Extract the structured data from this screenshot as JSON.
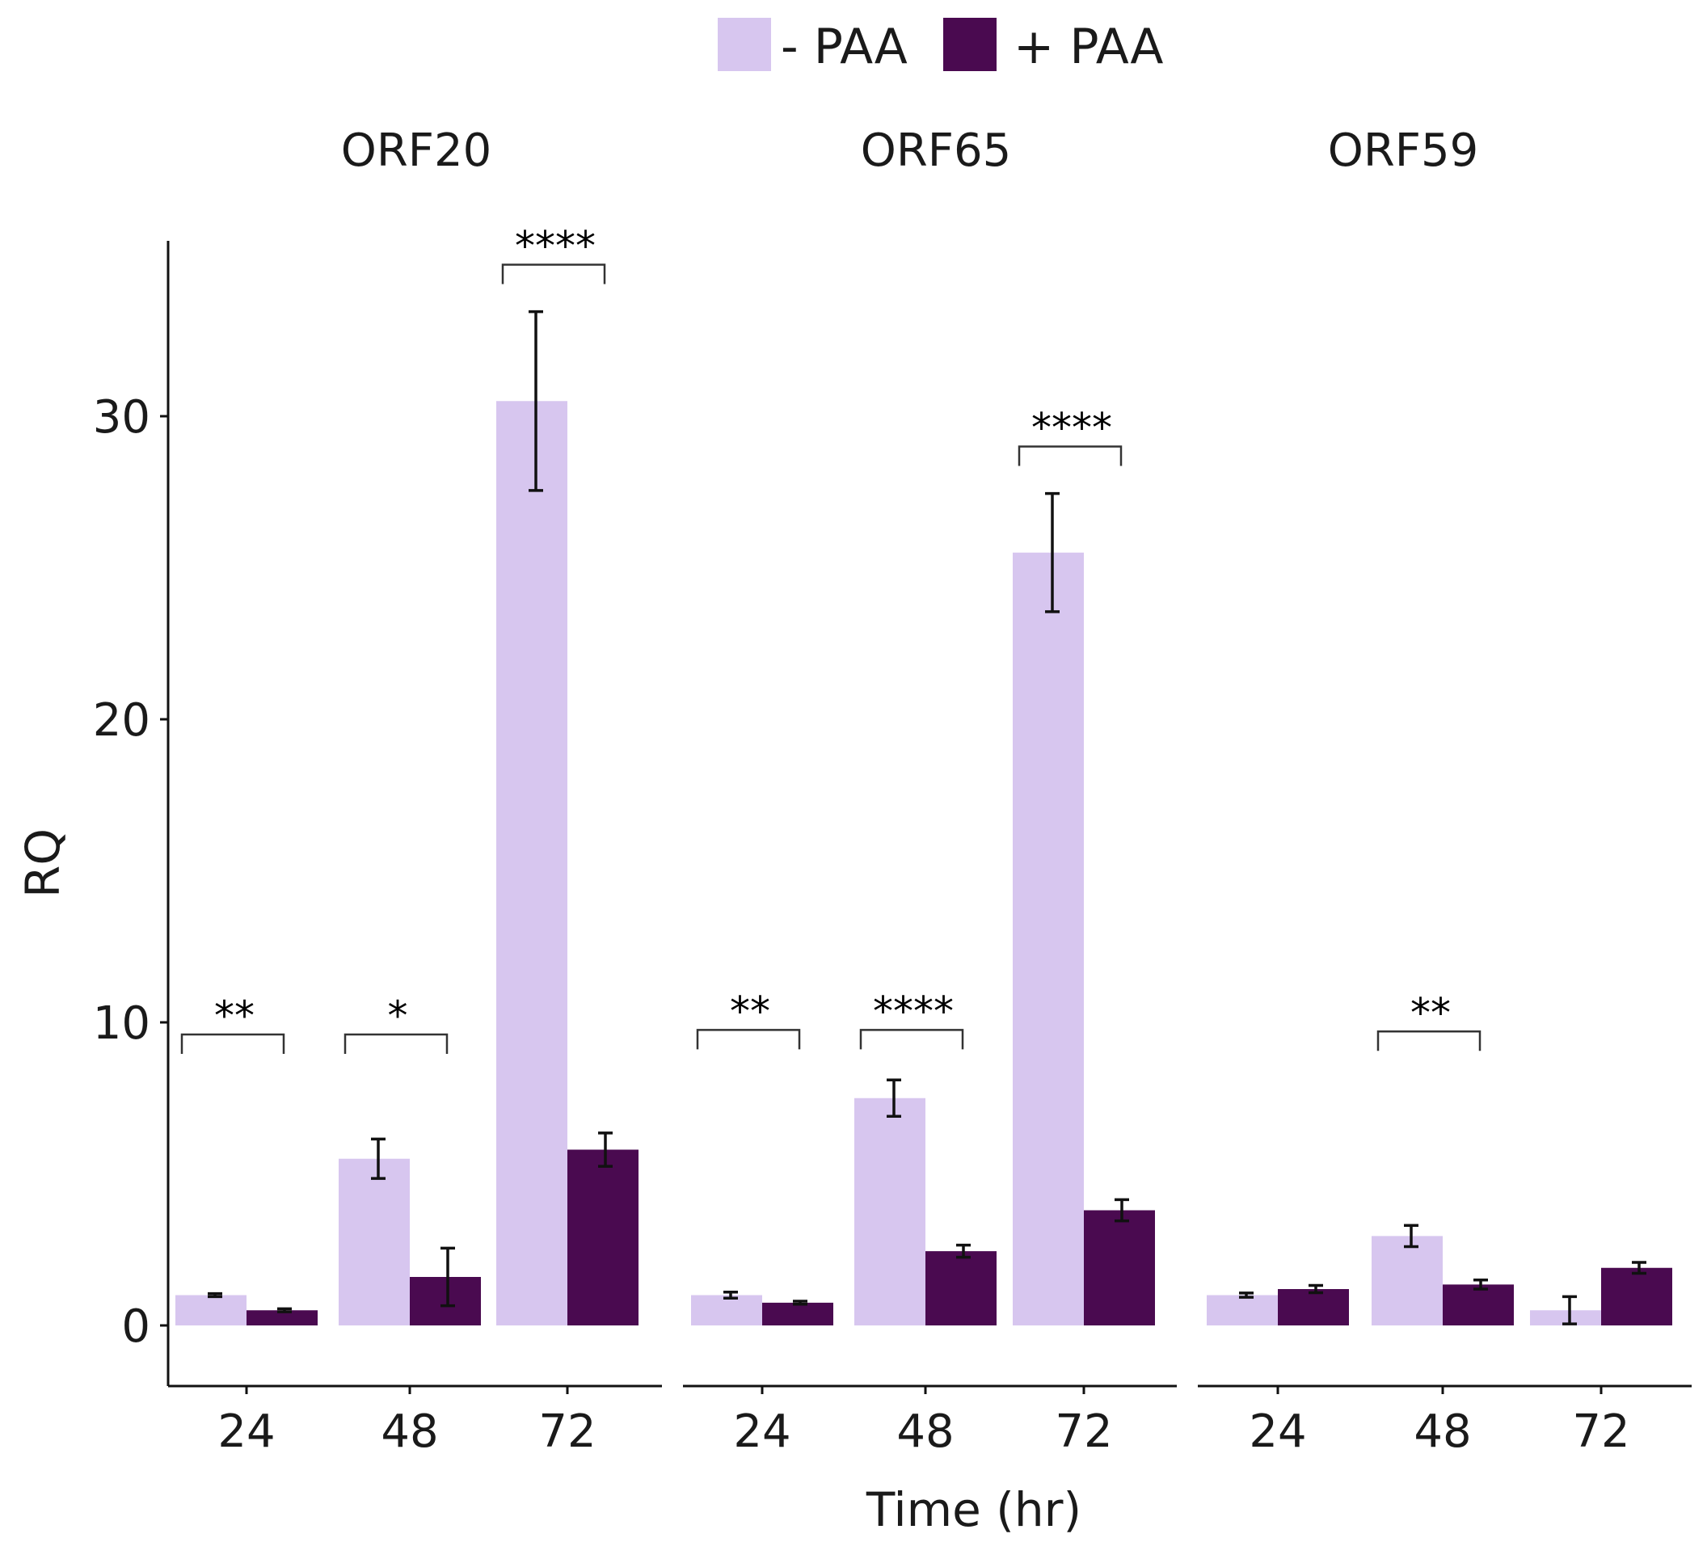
{
  "chart_data": {
    "type": "bar",
    "xlabel": "Time (hr)",
    "ylabel": "RQ",
    "ylim": [
      -2,
      36
    ],
    "yticks": [
      0,
      10,
      20,
      30
    ],
    "categories": [
      "24",
      "48",
      "72"
    ],
    "legend": {
      "position": "top",
      "entries": [
        {
          "label": "- PAA",
          "color": "#d7c6ef"
        },
        {
          "label": "+ PAA",
          "color": "#4a0a50"
        }
      ]
    },
    "facets": [
      {
        "title": "ORF20",
        "series": [
          {
            "name": "- PAA",
            "values": [
              1.0,
              5.5,
              30.5
            ],
            "err": [
              0.05,
              0.65,
              2.95
            ]
          },
          {
            "name": "+ PAA",
            "values": [
              0.5,
              1.6,
              5.8
            ],
            "err": [
              0.05,
              0.95,
              0.55
            ]
          }
        ],
        "significance": [
          {
            "category": "24",
            "label": "**",
            "y": 9.6
          },
          {
            "category": "48",
            "label": "*",
            "y": 9.6
          },
          {
            "category": "72",
            "label": "****",
            "y": 35.0
          }
        ]
      },
      {
        "title": "ORF65",
        "series": [
          {
            "name": "- PAA",
            "values": [
              1.0,
              7.5,
              25.5
            ],
            "err": [
              0.1,
              0.6,
              1.95
            ]
          },
          {
            "name": "+ PAA",
            "values": [
              0.75,
              2.45,
              3.8
            ],
            "err": [
              0.05,
              0.2,
              0.35
            ]
          }
        ],
        "significance": [
          {
            "category": "24",
            "label": "**",
            "y": 9.75
          },
          {
            "category": "48",
            "label": "****",
            "y": 9.75
          },
          {
            "category": "72",
            "label": "****",
            "y": 29.0
          }
        ]
      },
      {
        "title": "ORF59",
        "series": [
          {
            "name": "- PAA",
            "values": [
              1.0,
              2.95,
              0.5
            ],
            "err": [
              0.07,
              0.35,
              0.45
            ]
          },
          {
            "name": "+ PAA",
            "values": [
              1.2,
              1.35,
              1.9
            ],
            "err": [
              0.12,
              0.15,
              0.18
            ]
          }
        ],
        "significance": [
          {
            "category": "48",
            "label": "**",
            "y": 9.7
          }
        ]
      }
    ]
  }
}
